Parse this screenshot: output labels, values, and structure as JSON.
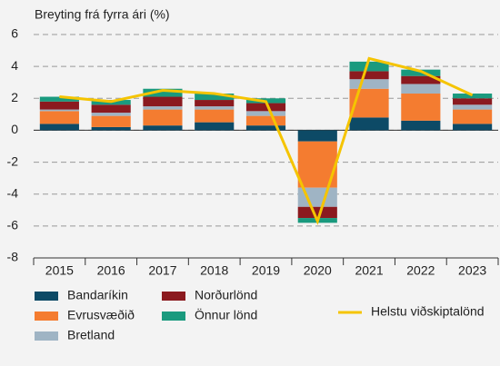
{
  "chart_data": {
    "type": "bar",
    "stacked": true,
    "y_axis_label": "Breyting frá fyrra ári (%)",
    "categories": [
      "2015",
      "2016",
      "2017",
      "2018",
      "2019",
      "2020",
      "2021",
      "2022",
      "2023"
    ],
    "ylim": [
      -8,
      6
    ],
    "yticks": [
      -8,
      -6,
      -4,
      -2,
      0,
      2,
      4,
      6
    ],
    "grid": true,
    "series": [
      {
        "name": "Bandaríkin",
        "color": "#0d4a66",
        "values": [
          0.4,
          0.2,
          0.3,
          0.5,
          0.3,
          -0.7,
          0.8,
          0.6,
          0.4
        ]
      },
      {
        "name": "Evrusvæðið",
        "color": "#f47c30",
        "values": [
          0.8,
          0.7,
          1.0,
          0.8,
          0.6,
          -2.9,
          1.8,
          1.7,
          0.9
        ]
      },
      {
        "name": "Bretland",
        "color": "#9fb4c4",
        "values": [
          0.1,
          0.2,
          0.2,
          0.2,
          0.3,
          -1.2,
          0.6,
          0.6,
          0.3
        ]
      },
      {
        "name": "Norðurlönd",
        "color": "#8b1a1f",
        "values": [
          0.5,
          0.5,
          0.6,
          0.4,
          0.5,
          -0.7,
          0.5,
          0.5,
          0.4
        ]
      },
      {
        "name": "Önnur lönd",
        "color": "#1a9a7e",
        "values": [
          0.3,
          0.3,
          0.5,
          0.4,
          0.3,
          -0.3,
          0.6,
          0.4,
          0.3
        ]
      },
      {
        "name": "Helstu viðskiptalönd",
        "type": "line",
        "color": "#f5c400",
        "values": [
          2.1,
          1.8,
          2.5,
          2.3,
          1.8,
          -5.7,
          4.5,
          3.7,
          2.2
        ]
      }
    ]
  }
}
